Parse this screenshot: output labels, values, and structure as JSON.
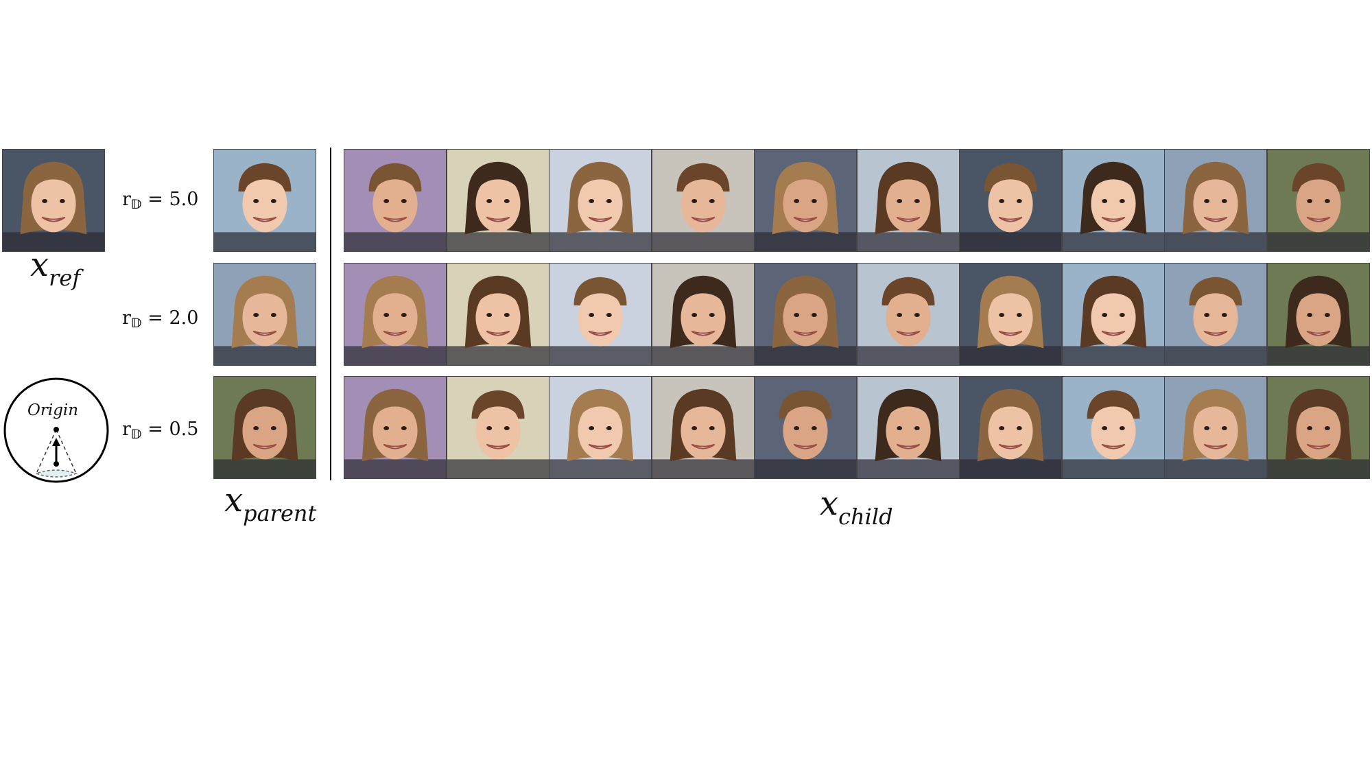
{
  "labels": {
    "x_ref_base": "x",
    "x_ref_sub": "ref",
    "x_parent_base": "x",
    "x_parent_sub": "parent",
    "x_child_base": "x",
    "x_child_sub": "child",
    "origin": "Origin"
  },
  "rows": [
    {
      "r_base": "r",
      "r_sub": "𝔻",
      "r_value": "= 5.0"
    },
    {
      "r_base": "r",
      "r_sub": "𝔻",
      "r_value": "= 2.0"
    },
    {
      "r_base": "r",
      "r_sub": "𝔻",
      "r_value": "= 0.5"
    }
  ],
  "face_palettes": {
    "skin": [
      "#e7b79a",
      "#eec2a4",
      "#d9a584",
      "#f0c9ae",
      "#e2b08f"
    ],
    "hair": [
      "#5a3a22",
      "#7a5533",
      "#3e2a1c",
      "#8a6540",
      "#6b4529",
      "#a57c4f"
    ],
    "bg": [
      "#9ab3c9",
      "#a38fb5",
      "#c8c3bb",
      "#4a5566",
      "#6d7a54",
      "#c9d2de",
      "#b8c4cf",
      "#8ea1b6",
      "#d8d2b8",
      "#5b6577"
    ]
  }
}
